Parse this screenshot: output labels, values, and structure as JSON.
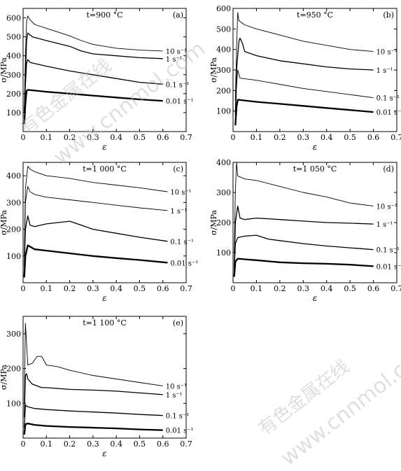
{
  "chart_data": [
    {
      "panel": "(a)",
      "title": "t=900 °C",
      "type": "line",
      "xlabel": "ε",
      "ylabel": "σ/MPa",
      "xlim": [
        0,
        0.7
      ],
      "ylim": [
        0,
        650
      ],
      "xticks": [
        "0",
        "0.1",
        "0.2",
        "0.3",
        "0.4",
        "0.5",
        "0.6",
        "0.7"
      ],
      "yticks": [
        "100",
        "200",
        "300",
        "400",
        "500",
        "600"
      ],
      "series": [
        {
          "name": "10 s⁻¹",
          "style": "thin",
          "x": [
            0.005,
            0.01,
            0.015,
            0.02,
            0.03,
            0.05,
            0.1,
            0.15,
            0.2,
            0.25,
            0.3,
            0.4,
            0.5,
            0.6
          ],
          "y": [
            100,
            400,
            580,
            610,
            590,
            565,
            545,
            525,
            505,
            480,
            460,
            440,
            430,
            425
          ]
        },
        {
          "name": "1 s⁻¹",
          "style": "medium",
          "x": [
            0.005,
            0.01,
            0.015,
            0.02,
            0.04,
            0.1,
            0.15,
            0.2,
            0.25,
            0.3,
            0.4,
            0.5,
            0.6
          ],
          "y": [
            100,
            300,
            480,
            520,
            500,
            480,
            465,
            450,
            425,
            410,
            400,
            390,
            385
          ]
        },
        {
          "name": "0.1 s⁻¹",
          "style": "medium",
          "x": [
            0.005,
            0.01,
            0.015,
            0.02,
            0.03,
            0.1,
            0.2,
            0.3,
            0.4,
            0.5,
            0.6
          ],
          "y": [
            100,
            250,
            360,
            380,
            365,
            345,
            320,
            300,
            280,
            260,
            250
          ]
        },
        {
          "name": "0.01 s⁻¹",
          "style": "thick",
          "x": [
            0.005,
            0.01,
            0.015,
            0.02,
            0.1,
            0.2,
            0.3,
            0.4,
            0.5,
            0.6
          ],
          "y": [
            40,
            150,
            215,
            220,
            210,
            200,
            190,
            180,
            170,
            162
          ]
        }
      ]
    },
    {
      "panel": "(b)",
      "title": "t=950 °C",
      "type": "line",
      "xlabel": "ε",
      "ylabel": "σ/MPa",
      "xlim": [
        0,
        0.7
      ],
      "ylim": [
        0,
        600
      ],
      "xticks": [
        "0",
        "0.1",
        "0.2",
        "0.3",
        "0.4",
        "0.5",
        "0.6",
        "0.7"
      ],
      "yticks": [
        "100",
        "200",
        "300",
        "400",
        "500",
        "600"
      ],
      "series": [
        {
          "name": "10 s⁻¹",
          "style": "thin",
          "x": [
            0.01,
            0.015,
            0.02,
            0.025,
            0.05,
            0.1,
            0.2,
            0.3,
            0.4,
            0.5,
            0.6
          ],
          "y": [
            150,
            400,
            580,
            540,
            520,
            500,
            470,
            440,
            420,
            400,
            390
          ]
        },
        {
          "name": "1 s⁻¹",
          "style": "medium",
          "x": [
            0.01,
            0.015,
            0.025,
            0.03,
            0.04,
            0.05,
            0.1,
            0.2,
            0.3,
            0.4,
            0.5,
            0.6
          ],
          "y": [
            80,
            300,
            440,
            455,
            430,
            390,
            370,
            345,
            330,
            315,
            305,
            300
          ]
        },
        {
          "name": "0.1 s⁻¹",
          "style": "thin",
          "x": [
            0.01,
            0.015,
            0.02,
            0.03,
            0.1,
            0.2,
            0.3,
            0.4,
            0.5,
            0.6
          ],
          "y": [
            60,
            220,
            300,
            260,
            250,
            230,
            210,
            195,
            180,
            165
          ]
        },
        {
          "name": "0.01 s⁻¹",
          "style": "thick",
          "x": [
            0.01,
            0.015,
            0.02,
            0.1,
            0.2,
            0.3,
            0.4,
            0.5,
            0.6
          ],
          "y": [
            30,
            120,
            155,
            145,
            135,
            125,
            115,
            105,
            95
          ]
        }
      ]
    },
    {
      "panel": "(c)",
      "title": "t=1 000 °C",
      "type": "line",
      "xlabel": "ε",
      "ylabel": "σ/MPa",
      "xlim": [
        0,
        0.7
      ],
      "ylim": [
        0,
        450
      ],
      "xticks": [
        "0",
        "0.1",
        "0.2",
        "0.3",
        "0.4",
        "0.5",
        "0.6",
        "0.7"
      ],
      "yticks": [
        "100",
        "200",
        "300",
        "400"
      ],
      "series": [
        {
          "name": "10 s⁻¹",
          "style": "thin",
          "x": [
            0.005,
            0.01,
            0.02,
            0.03,
            0.05,
            0.1,
            0.2,
            0.3,
            0.4,
            0.5,
            0.62
          ],
          "y": [
            100,
            350,
            435,
            425,
            415,
            400,
            390,
            375,
            365,
            355,
            340
          ]
        },
        {
          "name": "1 s⁻¹",
          "style": "thin",
          "x": [
            0.005,
            0.01,
            0.02,
            0.03,
            0.05,
            0.1,
            0.2,
            0.3,
            0.4,
            0.5,
            0.62
          ],
          "y": [
            80,
            300,
            360,
            340,
            330,
            320,
            310,
            300,
            290,
            280,
            270
          ]
        },
        {
          "name": "0.1 s⁻¹",
          "style": "medium",
          "x": [
            0.005,
            0.01,
            0.02,
            0.03,
            0.05,
            0.1,
            0.15,
            0.2,
            0.25,
            0.3,
            0.4,
            0.5,
            0.62
          ],
          "y": [
            60,
            200,
            250,
            215,
            210,
            220,
            225,
            230,
            215,
            200,
            185,
            170,
            155
          ]
        },
        {
          "name": "0.01 s⁻¹",
          "style": "thick",
          "x": [
            0.005,
            0.01,
            0.02,
            0.05,
            0.1,
            0.2,
            0.3,
            0.4,
            0.5,
            0.62
          ],
          "y": [
            20,
            100,
            140,
            125,
            120,
            110,
            100,
            92,
            85,
            75
          ]
        }
      ]
    },
    {
      "panel": "(d)",
      "title": "t=1 050 °C",
      "type": "line",
      "xlabel": "ε",
      "ylabel": "σ/MPa",
      "xlim": [
        0,
        0.7
      ],
      "ylim": [
        0,
        400
      ],
      "xticks": [
        "0",
        "0.1",
        "0.2",
        "0.3",
        "0.4",
        "0.5",
        "0.6",
        "0.7"
      ],
      "yticks": [
        "100",
        "200",
        "300",
        "400"
      ],
      "series": [
        {
          "name": "10 s⁻¹",
          "style": "thin",
          "x": [
            0.005,
            0.01,
            0.015,
            0.02,
            0.05,
            0.1,
            0.2,
            0.3,
            0.4,
            0.5,
            0.6
          ],
          "y": [
            100,
            300,
            400,
            355,
            345,
            340,
            320,
            300,
            285,
            265,
            255
          ]
        },
        {
          "name": "1 s⁻¹",
          "style": "medium",
          "x": [
            0.005,
            0.01,
            0.02,
            0.03,
            0.05,
            0.1,
            0.2,
            0.3,
            0.4,
            0.5,
            0.6
          ],
          "y": [
            50,
            200,
            255,
            215,
            210,
            215,
            210,
            205,
            200,
            198,
            195
          ]
        },
        {
          "name": "0.1 s⁻¹",
          "style": "medium",
          "x": [
            0.005,
            0.01,
            0.02,
            0.05,
            0.1,
            0.15,
            0.2,
            0.3,
            0.4,
            0.5,
            0.6
          ],
          "y": [
            40,
            130,
            150,
            155,
            158,
            145,
            140,
            130,
            122,
            116,
            110
          ]
        },
        {
          "name": "0.01 s⁻¹",
          "style": "thick",
          "x": [
            0.005,
            0.01,
            0.02,
            0.05,
            0.1,
            0.2,
            0.3,
            0.4,
            0.5,
            0.6
          ],
          "y": [
            20,
            70,
            80,
            78,
            75,
            68,
            65,
            63,
            60,
            55
          ]
        }
      ]
    },
    {
      "panel": "(e)",
      "title": "t=1 100 °C",
      "type": "line",
      "xlabel": "ε",
      "ylabel": "σ/MPa",
      "xlim": [
        0,
        0.7
      ],
      "ylim": [
        0,
        350
      ],
      "xticks": [
        "0",
        "0.1",
        "0.2",
        "0.3",
        "0.4",
        "0.5",
        "0.6",
        "0.7"
      ],
      "yticks": [
        "100",
        "200",
        "300"
      ],
      "series": [
        {
          "name": "10 s⁻¹",
          "style": "thin",
          "x": [
            0.005,
            0.01,
            0.015,
            0.02,
            0.04,
            0.06,
            0.08,
            0.1,
            0.15,
            0.2,
            0.3,
            0.4,
            0.5,
            0.6
          ],
          "y": [
            100,
            330,
            270,
            210,
            215,
            235,
            235,
            210,
            205,
            195,
            180,
            170,
            160,
            150
          ]
        },
        {
          "name": "1 s⁻¹",
          "style": "medium",
          "x": [
            0.005,
            0.01,
            0.015,
            0.02,
            0.04,
            0.08,
            0.1,
            0.2,
            0.3,
            0.4,
            0.5,
            0.6
          ],
          "y": [
            60,
            180,
            185,
            170,
            155,
            145,
            145,
            140,
            138,
            135,
            130,
            125
          ]
        },
        {
          "name": "0.1 s⁻¹",
          "style": "medium",
          "x": [
            0.005,
            0.01,
            0.02,
            0.05,
            0.1,
            0.2,
            0.3,
            0.4,
            0.5,
            0.6
          ],
          "y": [
            30,
            95,
            90,
            85,
            82,
            78,
            75,
            72,
            68,
            65
          ]
        },
        {
          "name": "0.01 s⁻¹",
          "style": "thick",
          "x": [
            0.005,
            0.01,
            0.02,
            0.05,
            0.1,
            0.2,
            0.3,
            0.4,
            0.5,
            0.6
          ],
          "y": [
            10,
            40,
            42,
            38,
            35,
            32,
            30,
            28,
            25,
            23
          ]
        }
      ]
    }
  ],
  "watermark": {
    "line1": "有色金属在线",
    "line2": "www.cnnmol.com"
  }
}
